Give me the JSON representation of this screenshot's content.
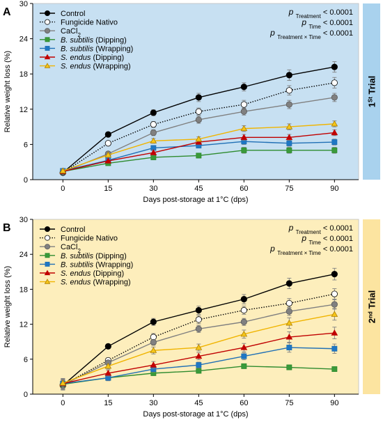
{
  "figure": {
    "x_axis_label": "Days post-storage at 1°C (dps)",
    "y_axis_label": "Relative weight loss (%)",
    "stats": [
      {
        "p": "p",
        "sub": "Treatment",
        "rest": " < 0.0001"
      },
      {
        "p": "p",
        "sub": "Time",
        "rest": " < 0.0001"
      },
      {
        "p": "p",
        "sub": "Treatment × Time",
        "rest": " < 0.0001"
      }
    ],
    "series_style": [
      {
        "color": "#000000",
        "dash": "",
        "marker": "circle",
        "fill": "#000000",
        "italic": false,
        "name": "Control"
      },
      {
        "color": "#000000",
        "dash": "1.5,2",
        "marker": "circle",
        "fill": "#ffffff",
        "italic": false,
        "name": "Fungicide Nativo"
      },
      {
        "color": "#808080",
        "dash": "",
        "marker": "circle",
        "fill": "#808080",
        "italic": false,
        "name": "CaCl2"
      },
      {
        "color": "#2e8b2e",
        "dash": "",
        "marker": "square",
        "fill": "#3a9a3a",
        "italic": true,
        "name": "B. subtilis",
        "suffix": " (Dipping)"
      },
      {
        "color": "#1f6fb5",
        "dash": "",
        "marker": "square",
        "fill": "#1f77c4",
        "italic": true,
        "name": "B. subtilis",
        "suffix": " (Wrapping)"
      },
      {
        "color": "#c00000",
        "dash": "",
        "marker": "triangle",
        "fill": "#c00000",
        "italic": true,
        "name": "S. endus",
        "suffix": " (Dipping)"
      },
      {
        "color": "#f0b400",
        "dash": "",
        "marker": "triangle",
        "fill": "#f5c518",
        "italic": true,
        "name": "S. endus",
        "suffix": " (Wrapping)"
      }
    ]
  },
  "chart_data": [
    {
      "type": "line",
      "panel_letter": "A",
      "trial_label": "1St Trial",
      "trial_num": "1",
      "trial_sup": "St",
      "trial_word": "Trial",
      "background": "#c7e0f2",
      "side_bar": "#a9d2ee",
      "x": [
        0,
        15,
        30,
        45,
        60,
        75,
        90
      ],
      "xlim": [
        -10,
        98
      ],
      "ylim": [
        0,
        30
      ],
      "y_ticks": [
        0,
        6,
        12,
        18,
        24,
        30
      ],
      "series": [
        {
          "name": "Control",
          "values": [
            1.2,
            7.7,
            11.4,
            14.0,
            15.8,
            17.8,
            19.2
          ],
          "err": [
            0.3,
            0.3,
            0.5,
            0.7,
            0.7,
            0.9,
            0.9
          ]
        },
        {
          "name": "Fungicide Nativo",
          "values": [
            1.2,
            6.2,
            9.4,
            11.6,
            12.8,
            15.2,
            16.5
          ],
          "err": [
            0.3,
            0.3,
            0.5,
            0.6,
            0.7,
            0.8,
            0.9
          ]
        },
        {
          "name": "CaCl2",
          "values": [
            1.3,
            4.4,
            8.0,
            10.2,
            11.6,
            12.8,
            14.0
          ],
          "err": [
            0.3,
            0.3,
            0.5,
            0.6,
            0.6,
            0.7,
            0.7
          ]
        },
        {
          "name": "B. subtilis (Dipping)",
          "values": [
            1.4,
            2.8,
            3.8,
            4.1,
            5.0,
            5.0,
            5.0
          ],
          "err": [
            0.3,
            0.3,
            0.4,
            0.4,
            0.5,
            0.5,
            0.5
          ]
        },
        {
          "name": "B. subtilis (Wrapping)",
          "values": [
            1.5,
            3.3,
            5.4,
            5.8,
            6.5,
            6.2,
            6.4
          ],
          "err": [
            0.3,
            0.3,
            0.4,
            0.4,
            0.5,
            0.5,
            0.5
          ]
        },
        {
          "name": "S. endus (Dipping)",
          "values": [
            1.4,
            3.2,
            4.6,
            6.4,
            7.2,
            7.2,
            8.0
          ],
          "err": [
            0.3,
            0.3,
            0.4,
            0.4,
            0.5,
            0.5,
            0.5
          ]
        },
        {
          "name": "S. endus (Wrapping)",
          "values": [
            1.5,
            4.2,
            6.6,
            6.9,
            8.7,
            9.0,
            9.5
          ],
          "err": [
            0.3,
            0.3,
            0.4,
            0.4,
            0.5,
            0.5,
            0.5
          ]
        }
      ]
    },
    {
      "type": "line",
      "panel_letter": "B",
      "trial_label": "2nd Trial",
      "trial_num": "2",
      "trial_sup": "nd",
      "trial_word": "Trial",
      "background": "#fdeebc",
      "side_bar": "#fce4a0",
      "x": [
        0,
        15,
        30,
        45,
        60,
        75,
        90
      ],
      "xlim": [
        -10,
        98
      ],
      "ylim": [
        0,
        30
      ],
      "y_ticks": [
        0,
        6,
        12,
        18,
        24,
        30
      ],
      "series": [
        {
          "name": "Control",
          "values": [
            1.5,
            8.2,
            12.4,
            14.4,
            16.3,
            19.0,
            20.6
          ],
          "err": [
            0.8,
            0.4,
            0.6,
            0.7,
            0.8,
            0.9,
            1.0
          ]
        },
        {
          "name": "Fungicide Nativo",
          "values": [
            1.6,
            5.8,
            9.8,
            12.8,
            14.4,
            15.6,
            17.2
          ],
          "err": [
            0.8,
            0.4,
            0.6,
            0.7,
            0.7,
            0.8,
            0.9
          ]
        },
        {
          "name": "CaCl2",
          "values": [
            1.6,
            5.4,
            8.9,
            11.2,
            12.4,
            14.2,
            15.4
          ],
          "err": [
            0.8,
            0.4,
            0.5,
            0.6,
            0.6,
            0.7,
            0.8
          ]
        },
        {
          "name": "B. subtilis (Dipping)",
          "values": [
            1.7,
            2.8,
            3.6,
            4.0,
            4.8,
            4.6,
            4.3
          ],
          "err": [
            0.8,
            0.4,
            0.4,
            0.4,
            0.4,
            0.4,
            0.4
          ]
        },
        {
          "name": "B. subtilis (Wrapping)",
          "values": [
            1.8,
            2.8,
            4.3,
            5.0,
            6.5,
            8.0,
            7.8
          ],
          "err": [
            0.8,
            0.5,
            0.5,
            0.5,
            0.6,
            0.8,
            0.8
          ]
        },
        {
          "name": "S. endus (Dipping)",
          "values": [
            1.8,
            3.6,
            5.0,
            6.5,
            8.0,
            9.8,
            10.5
          ],
          "err": [
            0.8,
            0.5,
            0.6,
            0.6,
            0.7,
            0.9,
            1.0
          ]
        },
        {
          "name": "S. endus (Wrapping)",
          "values": [
            1.9,
            4.8,
            7.5,
            8.0,
            10.3,
            12.2,
            13.7
          ],
          "err": [
            0.8,
            0.5,
            0.6,
            0.6,
            0.7,
            0.9,
            1.0
          ]
        }
      ]
    }
  ]
}
